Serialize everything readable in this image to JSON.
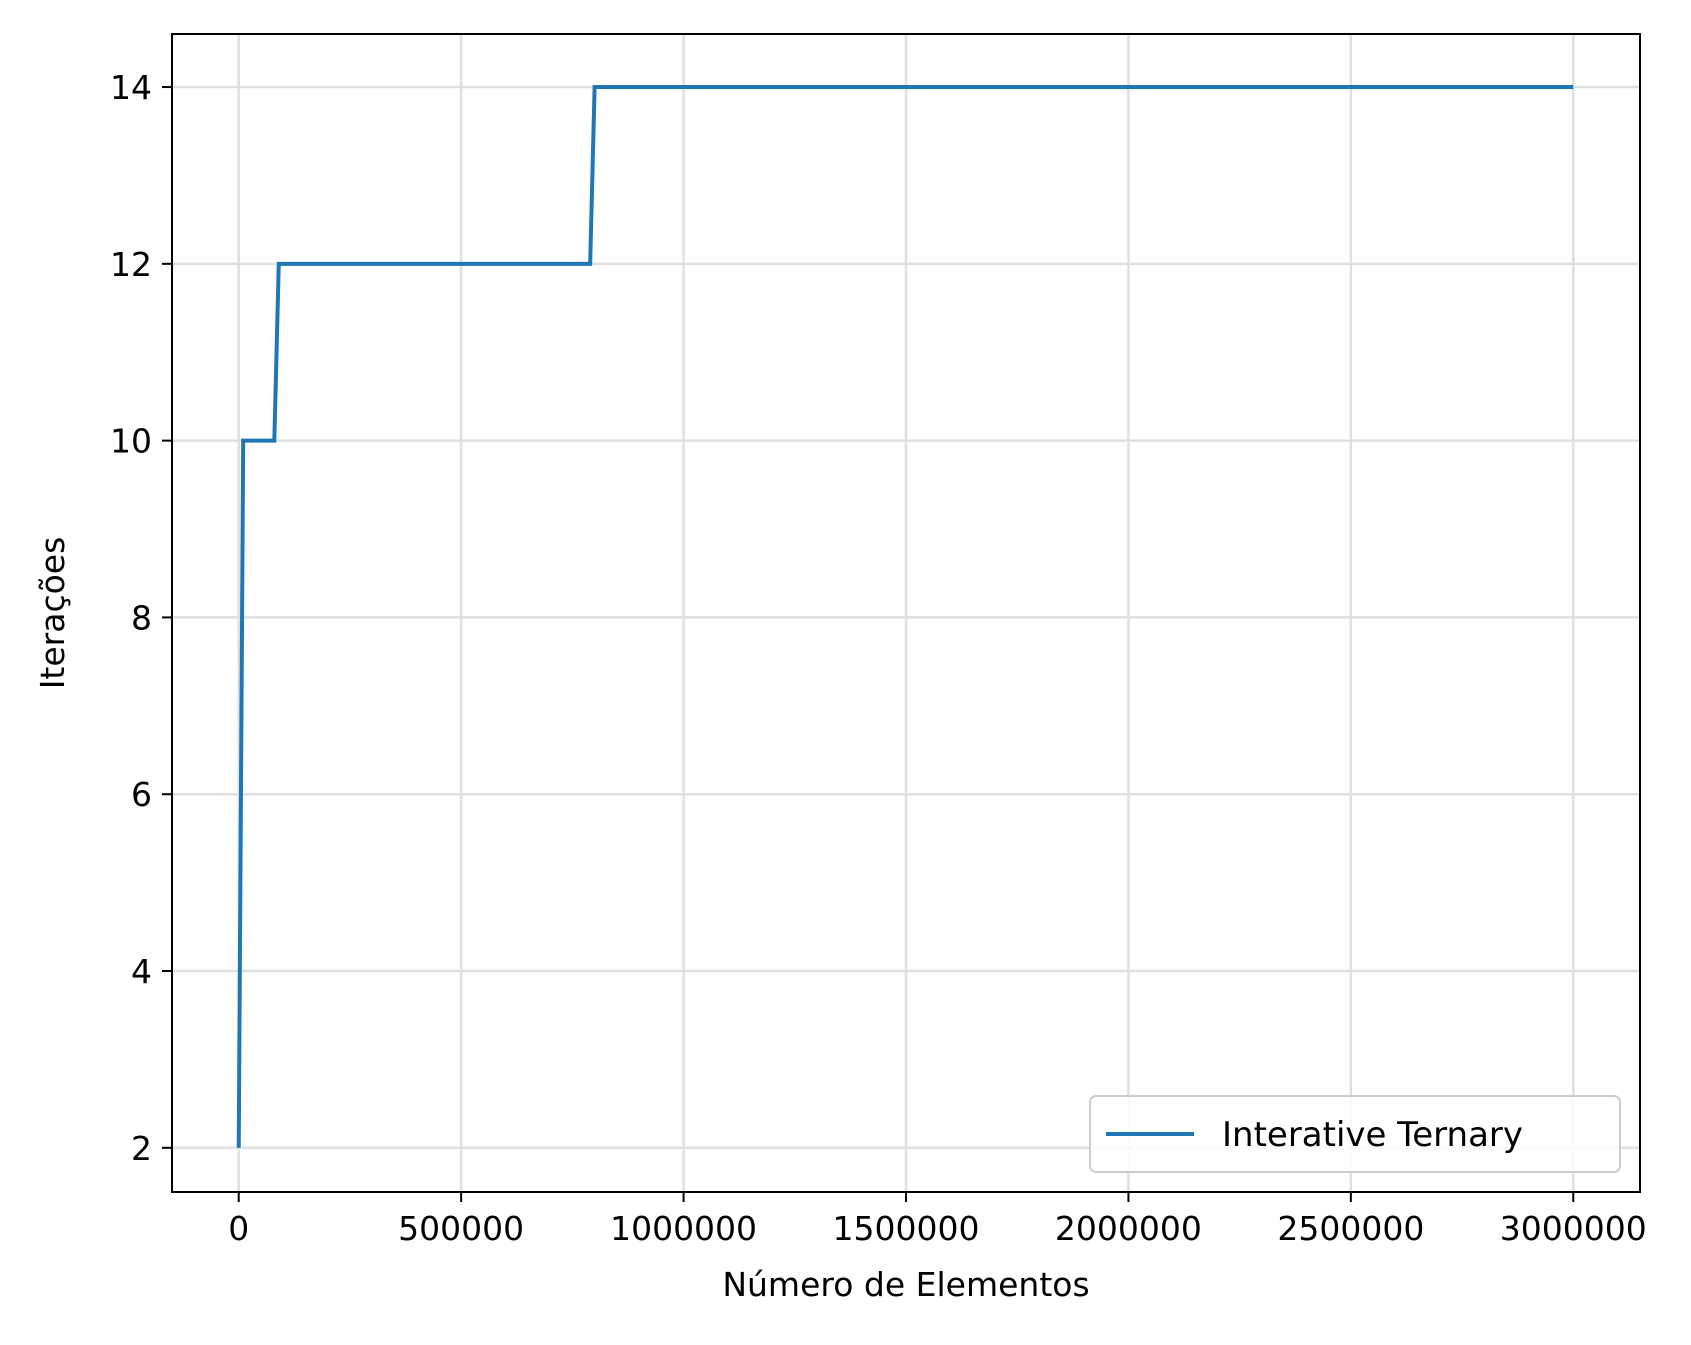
{
  "chart_data": {
    "type": "line",
    "title": "",
    "xlabel": "Número de Elementos",
    "ylabel": "Iterações",
    "xlim": [
      -150000,
      3150000
    ],
    "ylim": [
      1.5,
      14.6
    ],
    "x_ticks": [
      0,
      500000,
      1000000,
      1500000,
      2000000,
      2500000,
      3000000
    ],
    "x_tick_labels": [
      "0",
      "500000",
      "1000000",
      "1500000",
      "2000000",
      "2500000",
      "3000000"
    ],
    "y_ticks": [
      2,
      4,
      6,
      8,
      10,
      12,
      14
    ],
    "y_tick_labels": [
      "2",
      "4",
      "6",
      "8",
      "10",
      "12",
      "14"
    ],
    "grid": true,
    "legend_position": "lower-right",
    "colors": {
      "series": "#1f77b4",
      "grid": "#e0e0e0",
      "axes": "#000000"
    },
    "series": [
      {
        "name": "Interative Ternary",
        "x": [
          0,
          10000,
          80000,
          90000,
          790000,
          800000,
          3000000
        ],
        "y": [
          2,
          10,
          10,
          12,
          12,
          14,
          14
        ]
      }
    ]
  }
}
